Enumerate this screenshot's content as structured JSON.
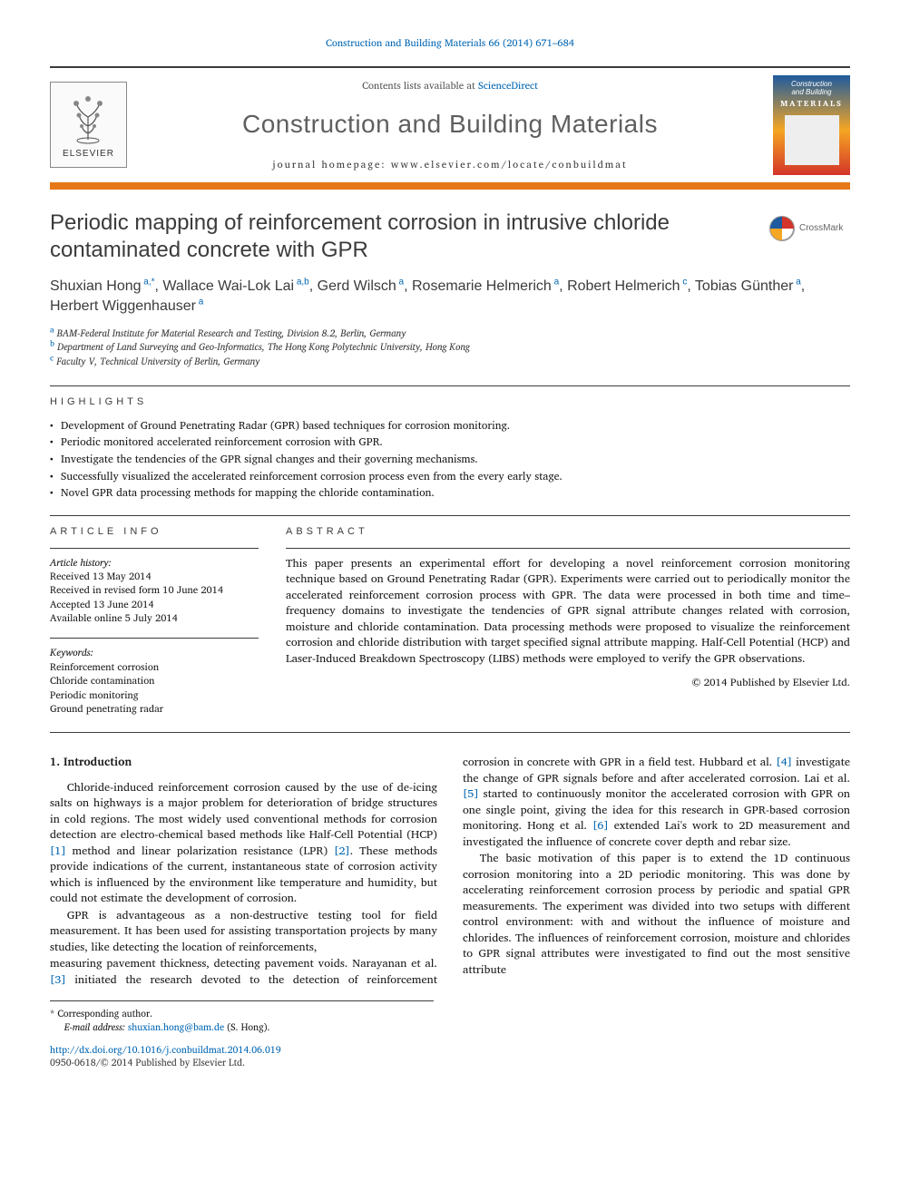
{
  "header_citation": "Construction and Building Materials 66 (2014) 671–684",
  "masthead": {
    "contents_prefix": "Contents lists available at ",
    "contents_link": "ScienceDirect",
    "journal_name": "Construction and Building Materials",
    "homepage_prefix": "journal homepage: ",
    "homepage_url": "www.elsevier.com/locate/conbuildmat",
    "elsevier_label": "ELSEVIER",
    "cover_line1": "Construction",
    "cover_line2": "and Building",
    "cover_word": "MATERIALS"
  },
  "title": "Periodic mapping of reinforcement corrosion in intrusive chloride contaminated concrete with GPR",
  "crossmark": "CrossMark",
  "authors_html": "Shuxian Hong<sup> a,*</sup>, Wallace Wai-Lok Lai<sup> a,b</sup>, Gerd Wilsch<sup> a</sup>, Rosemarie Helmerich<sup> a</sup>, Robert Helmerich<sup> c</sup>, Tobias Günther<sup> a</sup>, Herbert Wiggenhauser<sup> a</sup>",
  "affiliations": [
    {
      "sup": "a",
      "text": "BAM-Federal Institute for Material Research and Testing, Division 8.2, Berlin, Germany"
    },
    {
      "sup": "b",
      "text": "Department of Land Surveying and Geo-Informatics, The Hong Kong Polytechnic University, Hong Kong"
    },
    {
      "sup": "c",
      "text": "Faculty V, Technical University of Berlin, Germany"
    }
  ],
  "highlights_label": "HIGHLIGHTS",
  "highlights": [
    "Development of Ground Penetrating Radar (GPR) based techniques for corrosion monitoring.",
    "Periodic monitored accelerated reinforcement corrosion with GPR.",
    "Investigate the tendencies of the GPR signal changes and their governing mechanisms.",
    "Successfully visualized the accelerated reinforcement corrosion process even from the every early stage.",
    "Novel GPR data processing methods for mapping the chloride contamination."
  ],
  "info_label": "ARTICLE INFO",
  "abstract_label": "ABSTRACT",
  "history_label": "Article history:",
  "history": [
    "Received 13 May 2014",
    "Received in revised form 10 June 2014",
    "Accepted 13 June 2014",
    "Available online 5 July 2014"
  ],
  "keywords_label": "Keywords:",
  "keywords": [
    "Reinforcement corrosion",
    "Chloride contamination",
    "Periodic monitoring",
    "Ground penetrating radar"
  ],
  "abstract": "This paper presents an experimental effort for developing a novel reinforcement corrosion monitoring technique based on Ground Penetrating Radar (GPR). Experiments were carried out to periodically monitor the accelerated reinforcement corrosion process with GPR. The data were processed in both time and time–frequency domains to investigate the tendencies of GPR signal attribute changes related with corrosion, moisture and chloride contamination. Data processing methods were proposed to visualize the reinforcement corrosion and chloride distribution with target specified signal attribute mapping. Half-Cell Potential (HCP) and Laser-Induced Breakdown Spectroscopy (LIBS) methods were employed to verify the GPR observations.",
  "copyright": "© 2014 Published by Elsevier Ltd.",
  "section_1_heading": "1. Introduction",
  "body_p1_pre": "Chloride-induced reinforcement corrosion caused by the use of de-icing salts on highways is a major problem for deterioration of bridge structures in cold regions. The most widely used conventional methods for corrosion detection are electro-chemical based methods like Half-Cell Potential (HCP) ",
  "ref1": "[1]",
  "body_p1_mid": " method and linear polarization resistance (LPR) ",
  "ref2": "[2]",
  "body_p1_post": ". These methods provide indications of the current, instantaneous state of corrosion activity which is influenced by the environment like temperature and humidity, but could not estimate the development of corrosion.",
  "body_p2": "GPR is advantageous as a non-destructive testing tool for field measurement. It has been used for assisting transportation projects by many studies, like detecting the location of reinforcements,",
  "body_p3_pre": "measuring pavement thickness, detecting pavement voids. Narayanan et al. ",
  "ref3": "[3]",
  "body_p3_a": " initiated the research devoted to the detection of reinforcement corrosion in concrete with GPR in a field test. Hubbard et al. ",
  "ref4": "[4]",
  "body_p3_b": " investigate the change of GPR signals before and after accelerated corrosion. Lai et al. ",
  "ref5": "[5]",
  "body_p3_c": " started to continuously monitor the accelerated corrosion with GPR on one single point, giving the idea for this research in GPR-based corrosion monitoring. Hong et al. ",
  "ref6": "[6]",
  "body_p3_d": " extended Lai's work to 2D measurement and investigated the influence of concrete cover depth and rebar size.",
  "body_p4": "The basic motivation of this paper is to extend the 1D continuous corrosion monitoring into a 2D periodic monitoring. This was done by accelerating reinforcement corrosion process by periodic and spatial GPR measurements. The experiment was divided into two setups with different control environment: with and without the influence of moisture and chlorides. The influences of reinforcement corrosion, moisture and chlorides to GPR signal attributes were investigated to find out the most sensitive attribute",
  "footnote": {
    "corr": "* Corresponding author.",
    "email_label": "E-mail address: ",
    "email": "shuxian.hong@bam.de",
    "email_paren": " (S. Hong)."
  },
  "doi": "http://dx.doi.org/10.1016/j.conbuildmat.2014.06.019",
  "issn_line": "0950-0618/© 2014 Published by Elsevier Ltd.",
  "colors": {
    "link": "#0066b3",
    "orange_bar": "#e67817",
    "text": "#3b3b3b"
  }
}
